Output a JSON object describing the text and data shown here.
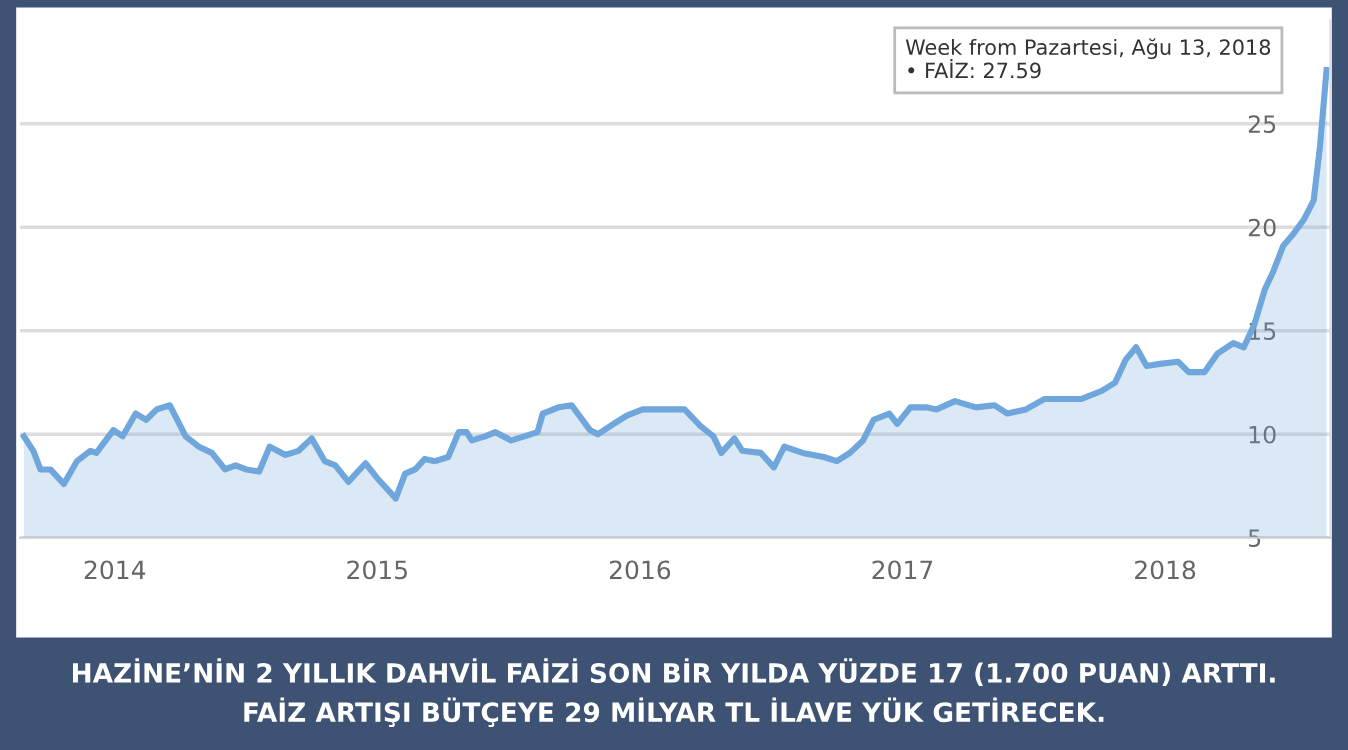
{
  "chart_data": {
    "type": "area",
    "x": [
      2013.654,
      2013.69,
      2013.717,
      2013.755,
      2013.806,
      2013.856,
      2013.907,
      2013.93,
      2013.995,
      2014.03,
      2014.08,
      2014.12,
      2014.16,
      2014.21,
      2014.27,
      2014.32,
      2014.37,
      2014.42,
      2014.46,
      2014.5,
      2014.55,
      2014.59,
      2014.65,
      2014.7,
      2014.75,
      2014.8,
      2014.84,
      2014.89,
      2014.955,
      2015.005,
      2015.07,
      2015.106,
      2015.144,
      2015.18,
      2015.22,
      2015.27,
      2015.31,
      2015.34,
      2015.36,
      2015.41,
      2015.45,
      2015.51,
      2015.56,
      2015.61,
      2015.63,
      2015.69,
      2015.74,
      2015.81,
      2015.84,
      2015.9,
      2015.95,
      2016.01,
      2016.11,
      2016.17,
      2016.23,
      2016.28,
      2016.31,
      2016.36,
      2016.39,
      2016.46,
      2016.51,
      2016.55,
      2016.62,
      2016.7,
      2016.75,
      2016.8,
      2016.85,
      2016.89,
      2016.95,
      2016.98,
      2017.03,
      2017.09,
      2017.13,
      2017.2,
      2017.28,
      2017.35,
      2017.4,
      2017.47,
      2017.54,
      2017.61,
      2017.68,
      2017.76,
      2017.81,
      2017.85,
      2017.89,
      2017.93,
      2017.98,
      2018.05,
      2018.09,
      2018.15,
      2018.2,
      2018.26,
      2018.3,
      2018.34,
      2018.38,
      2018.41,
      2018.45,
      2018.49,
      2018.53,
      2018.566,
      2018.59,
      2018.615
    ],
    "series": [
      {
        "color": "#6fa6dc",
        "values": [
          9.9,
          9.2,
          8.3,
          8.3,
          7.6,
          8.7,
          9.2,
          9.1,
          10.2,
          9.9,
          11.0,
          10.7,
          11.2,
          11.4,
          9.9,
          9.4,
          9.1,
          8.3,
          8.5,
          8.3,
          8.2,
          9.4,
          9.0,
          9.2,
          9.8,
          8.7,
          8.5,
          7.7,
          8.6,
          7.8,
          6.9,
          8.1,
          8.3,
          8.8,
          8.7,
          8.9,
          10.1,
          10.1,
          9.7,
          9.9,
          10.1,
          9.7,
          9.9,
          10.1,
          11.0,
          11.3,
          11.4,
          10.2,
          10.0,
          10.5,
          10.9,
          11.2,
          11.2,
          11.2,
          10.4,
          9.9,
          9.1,
          9.8,
          9.2,
          9.1,
          8.4,
          9.4,
          9.1,
          8.9,
          8.7,
          9.1,
          9.7,
          10.7,
          11.0,
          10.5,
          11.3,
          11.3,
          11.2,
          11.6,
          11.3,
          11.4,
          11.0,
          11.2,
          11.7,
          11.7,
          11.7,
          12.1,
          12.5,
          13.6,
          14.2,
          13.3,
          13.4,
          13.5,
          13.0,
          13.0,
          13.9,
          14.4,
          14.2,
          15.3,
          17.0,
          17.8,
          19.1,
          19.7,
          20.4,
          21.3,
          23.9,
          27.59
        ]
      }
    ],
    "xlim": [
      2013.64,
      2018.63
    ],
    "xticks": [
      2014,
      2015,
      2016,
      2017,
      2018
    ],
    "ylim": [
      5,
      30
    ],
    "yticks": [
      5,
      10,
      15,
      20,
      25
    ],
    "grid": "y",
    "annotations": [
      "Week from Pazartesi, Ağu 13, 2018\n• FAİZ: 27.59",
      "HAZİNE’NİN 2 YILLIK DAHVİL FAİZİ SON BİR YILDA YÜZDE 17 (1.700 PUAN) ARTTI.\nFAİZ ARTIŞI BÜTÇEYE 29 MİLYAR TL İLAVE YÜK GETİRECEK."
    ]
  }
}
